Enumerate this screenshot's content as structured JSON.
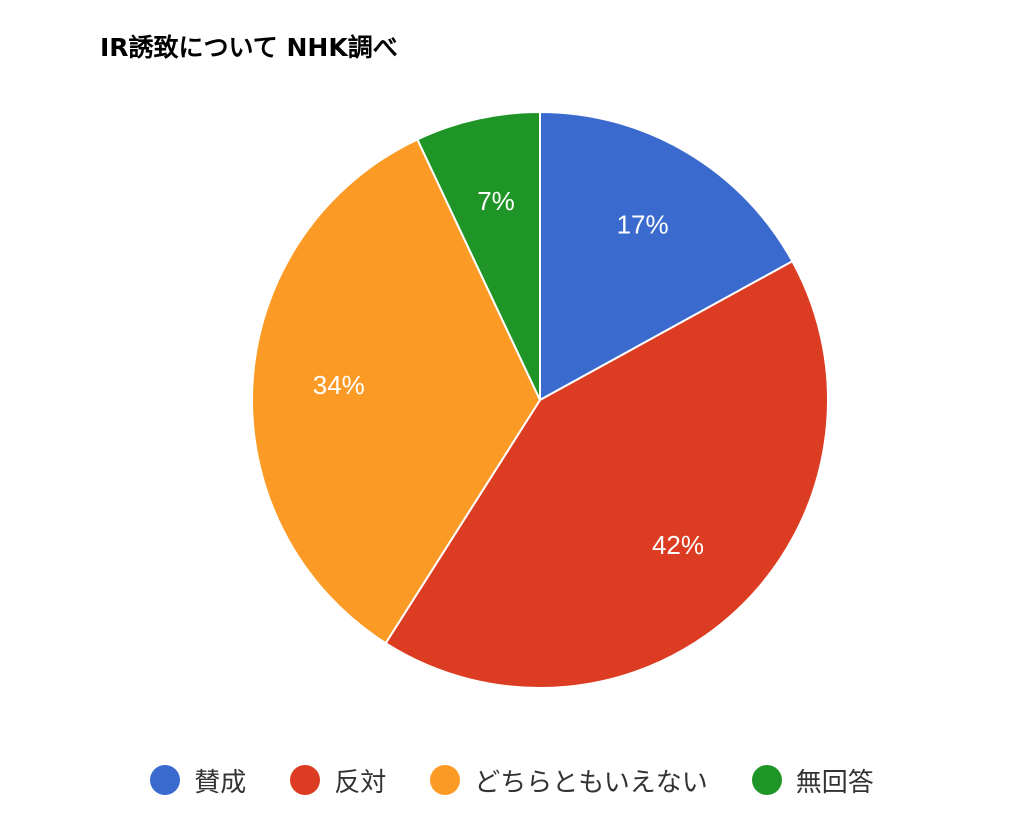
{
  "chart_data": {
    "type": "pie",
    "title": "IR誘致について NHK調べ",
    "unit": "%",
    "legend_position": "bottom",
    "slices": [
      {
        "label": "賛成",
        "value": 17,
        "display": "17%",
        "color": "#3a6acd"
      },
      {
        "label": "反対",
        "value": 42,
        "display": "42%",
        "color": "#dc3c21"
      },
      {
        "label": "どちらともいえない",
        "value": 34,
        "display": "34%",
        "color": "#fb9b26"
      },
      {
        "label": "無回答",
        "value": 7,
        "display": "7%",
        "color": "#1f9527"
      }
    ]
  }
}
